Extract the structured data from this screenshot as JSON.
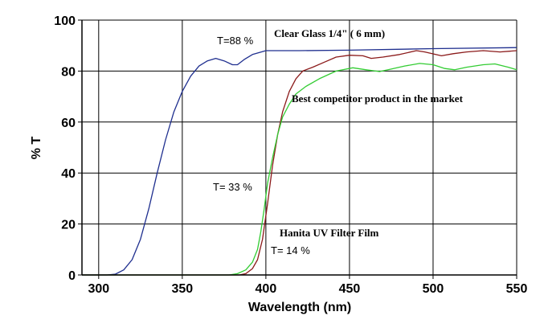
{
  "chart_data": {
    "type": "line",
    "title": "",
    "xlabel": "Wavelength (nm)",
    "ylabel": "% T",
    "xlim": [
      290,
      550
    ],
    "ylim": [
      0,
      100
    ],
    "grid": true,
    "x_ticks": [
      "300",
      "350",
      "400",
      "450",
      "500",
      "550"
    ],
    "y_ticks": [
      "0",
      "20",
      "40",
      "60",
      "80",
      "100"
    ],
    "series": [
      {
        "name": "Clear Glass 1/4\" ( 6 mm)",
        "color": "#1f2f8f",
        "points": [
          [
            290,
            0
          ],
          [
            305,
            0
          ],
          [
            310,
            0.3
          ],
          [
            315,
            2
          ],
          [
            320,
            6
          ],
          [
            325,
            14
          ],
          [
            330,
            26
          ],
          [
            335,
            40
          ],
          [
            340,
            53
          ],
          [
            345,
            64
          ],
          [
            350,
            72
          ],
          [
            355,
            78
          ],
          [
            360,
            82
          ],
          [
            365,
            84
          ],
          [
            370,
            85
          ],
          [
            375,
            84
          ],
          [
            380,
            82.5
          ],
          [
            383,
            82.5
          ],
          [
            387,
            84.5
          ],
          [
            392,
            86.5
          ],
          [
            400,
            88
          ],
          [
            420,
            88
          ],
          [
            450,
            88.2
          ],
          [
            500,
            88.8
          ],
          [
            550,
            89.2
          ]
        ]
      },
      {
        "name": "Best competitor product in the market",
        "color": "#8b1a1a",
        "points": [
          [
            290,
            0
          ],
          [
            384,
            0
          ],
          [
            388,
            0.5
          ],
          [
            392,
            2.5
          ],
          [
            395,
            6
          ],
          [
            398,
            14
          ],
          [
            401,
            28
          ],
          [
            404,
            43
          ],
          [
            407,
            55
          ],
          [
            410,
            64
          ],
          [
            414,
            72
          ],
          [
            418,
            77
          ],
          [
            422,
            80
          ],
          [
            428,
            81.5
          ],
          [
            435,
            83.5
          ],
          [
            442,
            85.5
          ],
          [
            450,
            86.2
          ],
          [
            458,
            86
          ],
          [
            463,
            85
          ],
          [
            470,
            85.5
          ],
          [
            480,
            86.5
          ],
          [
            490,
            88
          ],
          [
            495,
            87.5
          ],
          [
            505,
            86
          ],
          [
            512,
            86.8
          ],
          [
            520,
            87.5
          ],
          [
            530,
            88
          ],
          [
            540,
            87.5
          ],
          [
            550,
            88
          ]
        ]
      },
      {
        "name": "Hanita UV Filter Film",
        "color": "#33cc33",
        "points": [
          [
            290,
            0
          ],
          [
            378,
            0
          ],
          [
            383,
            0.5
          ],
          [
            388,
            2
          ],
          [
            392,
            5
          ],
          [
            395,
            10
          ],
          [
            397,
            17
          ],
          [
            399,
            26
          ],
          [
            401,
            36
          ],
          [
            404,
            46
          ],
          [
            407,
            55
          ],
          [
            410,
            62
          ],
          [
            414,
            67
          ],
          [
            418,
            71
          ],
          [
            424,
            74
          ],
          [
            432,
            77
          ],
          [
            442,
            80
          ],
          [
            452,
            81.3
          ],
          [
            460,
            80.5
          ],
          [
            468,
            79.8
          ],
          [
            475,
            80.8
          ],
          [
            483,
            82
          ],
          [
            492,
            83
          ],
          [
            500,
            82.5
          ],
          [
            507,
            81
          ],
          [
            513,
            80.5
          ],
          [
            520,
            81.5
          ],
          [
            530,
            82.5
          ],
          [
            537,
            82.8
          ],
          [
            545,
            81.5
          ],
          [
            550,
            80.5
          ]
        ]
      }
    ],
    "annotations": [
      {
        "text": "T=88 %",
        "style": "sans"
      },
      {
        "text": "Clear Glass 1/4\" ( 6 mm)",
        "style": "serif"
      },
      {
        "text": "Best competitor product in the market",
        "style": "serif"
      },
      {
        "text": "T= 33 %",
        "style": "sans"
      },
      {
        "text": "Hanita UV Filter Film",
        "style": "serif"
      },
      {
        "text": "T= 14 %",
        "style": "sans"
      }
    ]
  }
}
